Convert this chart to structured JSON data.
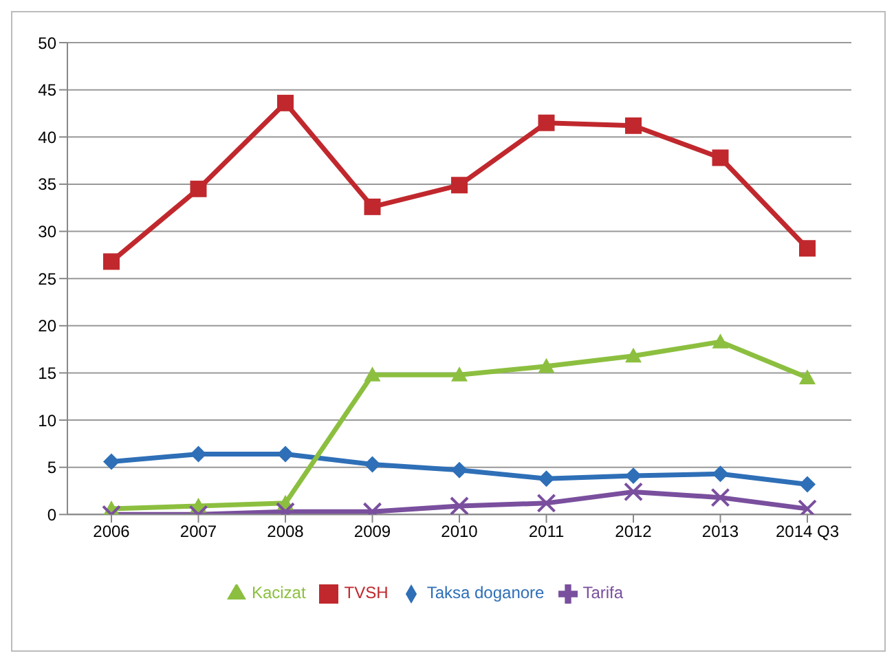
{
  "chart_data": {
    "type": "line",
    "categories": [
      "2006",
      "2007",
      "2008",
      "2009",
      "2010",
      "2011",
      "2012",
      "2013",
      "2014 Q3"
    ],
    "series": [
      {
        "name": "Taksa doganore",
        "color": "#2e6fb7",
        "marker": "diamond",
        "values": [
          5.6,
          6.4,
          6.4,
          5.3,
          4.7,
          3.8,
          4.1,
          4.3,
          3.2
        ]
      },
      {
        "name": "TVSH",
        "color": "#c0282d",
        "marker": "square",
        "values": [
          26.8,
          34.5,
          43.6,
          32.6,
          34.9,
          41.5,
          41.2,
          37.8,
          28.2
        ]
      },
      {
        "name": "Kacizat",
        "color": "#8cbf3f",
        "marker": "triangle",
        "values": [
          0.6,
          0.9,
          1.2,
          14.8,
          14.8,
          15.7,
          16.8,
          18.3,
          14.5
        ]
      },
      {
        "name": "Tarifa",
        "color": "#7a4f9e",
        "marker": "cross",
        "values": [
          0,
          0,
          0.3,
          0.3,
          0.9,
          1.2,
          2.4,
          1.8,
          0.6
        ]
      }
    ],
    "ylim": [
      0,
      50
    ],
    "yticks": [
      0,
      5,
      10,
      15,
      20,
      25,
      30,
      35,
      40,
      45,
      50
    ],
    "grid": "y",
    "legend": "bottom",
    "line_style": "solid"
  }
}
